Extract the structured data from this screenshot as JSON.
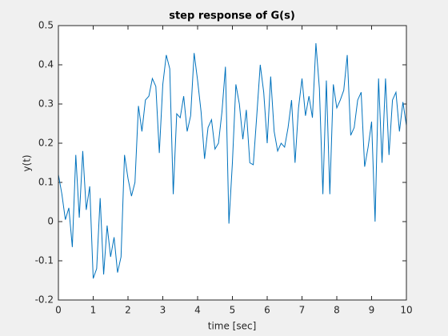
{
  "chart_data": {
    "type": "line",
    "title": "step response of G(s)",
    "xlabel": "time [sec]",
    "ylabel": "y(t)",
    "x": [
      0,
      0.1,
      0.2,
      0.3,
      0.4,
      0.5,
      0.6,
      0.7,
      0.8,
      0.9,
      1,
      1.1,
      1.2,
      1.3,
      1.4,
      1.5,
      1.6,
      1.7,
      1.8,
      1.9,
      2,
      2.1,
      2.2,
      2.3,
      2.4,
      2.5,
      2.6,
      2.7,
      2.8,
      2.9,
      3,
      3.1,
      3.2,
      3.3,
      3.4,
      3.5,
      3.6,
      3.7,
      3.8,
      3.9,
      4,
      4.1,
      4.2,
      4.3,
      4.4,
      4.5,
      4.6,
      4.7,
      4.8,
      4.9,
      5,
      5.1,
      5.2,
      5.3,
      5.4,
      5.5,
      5.6,
      5.7,
      5.8,
      5.9,
      6,
      6.1,
      6.2,
      6.3,
      6.4,
      6.5,
      6.6,
      6.7,
      6.8,
      6.9,
      7,
      7.1,
      7.2,
      7.3,
      7.4,
      7.5,
      7.6,
      7.7,
      7.8,
      7.9,
      8,
      8.1,
      8.2,
      8.3,
      8.4,
      8.5,
      8.6,
      8.7,
      8.8,
      8.9,
      9,
      9.1,
      9.2,
      9.3,
      9.4,
      9.5,
      9.6,
      9.7,
      9.8,
      9.9,
      10
    ],
    "series": [
      {
        "name": "y",
        "color": "#0072bd",
        "values": [
          0.12,
          0.07,
          0.005,
          0.035,
          -0.065,
          0.17,
          0.01,
          0.18,
          0.03,
          0.09,
          -0.145,
          -0.12,
          0.06,
          -0.135,
          -0.01,
          -0.09,
          -0.04,
          -0.13,
          -0.09,
          0.17,
          0.11,
          0.065,
          0.1,
          0.295,
          0.23,
          0.31,
          0.32,
          0.365,
          0.345,
          0.175,
          0.35,
          0.425,
          0.39,
          0.07,
          0.275,
          0.265,
          0.32,
          0.23,
          0.27,
          0.43,
          0.36,
          0.28,
          0.16,
          0.24,
          0.26,
          0.185,
          0.2,
          0.28,
          0.395,
          -0.005,
          0.15,
          0.35,
          0.3,
          0.21,
          0.285,
          0.15,
          0.145,
          0.27,
          0.4,
          0.33,
          0.2,
          0.37,
          0.23,
          0.18,
          0.2,
          0.19,
          0.24,
          0.31,
          0.15,
          0.29,
          0.365,
          0.27,
          0.32,
          0.265,
          0.455,
          0.34,
          0.07,
          0.36,
          0.07,
          0.35,
          0.29,
          0.31,
          0.335,
          0.425,
          0.22,
          0.24,
          0.31,
          0.33,
          0.14,
          0.19,
          0.255,
          0.0,
          0.365,
          0.15,
          0.365,
          0.17,
          0.31,
          0.33,
          0.23,
          0.305,
          0.245
        ]
      }
    ],
    "xlim": [
      0,
      10
    ],
    "xticks": [
      0,
      1,
      2,
      3,
      4,
      5,
      6,
      7,
      8,
      9,
      10
    ],
    "ylim": [
      -0.2,
      0.5
    ],
    "yticks": [
      -0.2,
      -0.1,
      0,
      0.1,
      0.2,
      0.3,
      0.4,
      0.5
    ]
  }
}
